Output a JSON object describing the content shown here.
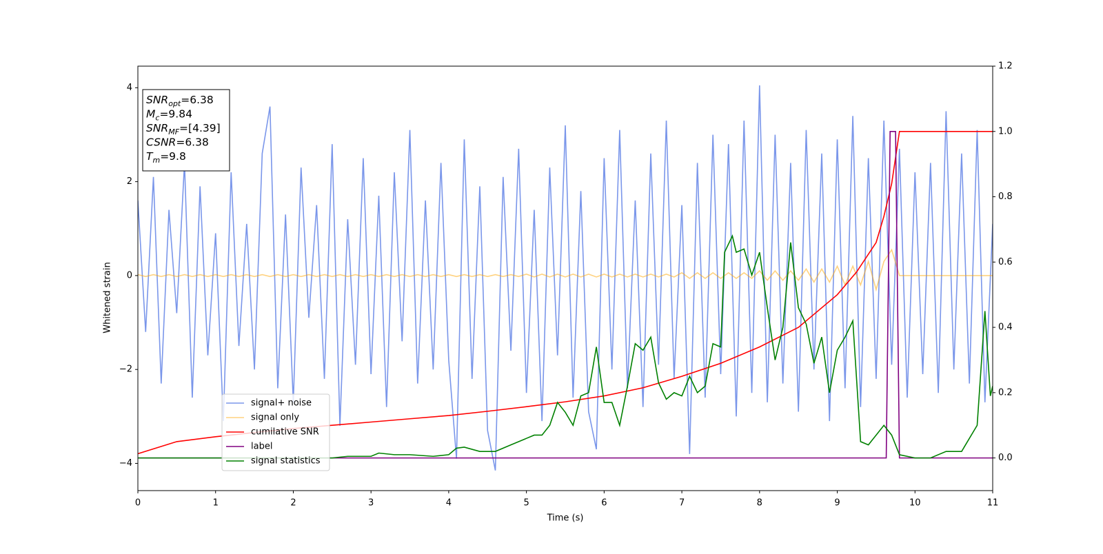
{
  "chart_data": {
    "type": "line",
    "xlabel": "Time (s)",
    "ylabel": "Whitened strain",
    "xlim": [
      0,
      11
    ],
    "xticks": [
      0,
      1,
      2,
      3,
      4,
      5,
      6,
      7,
      8,
      9,
      10,
      11
    ],
    "ylim": [
      -4.58,
      4.46
    ],
    "yticks": [
      {
        "value": -4,
        "label": "−4"
      },
      {
        "value": -2,
        "label": "−2"
      },
      0,
      2,
      4
    ],
    "y2lim": [
      -0.1,
      1.2
    ],
    "y2ticks": [
      {
        "value": 0,
        "label": "0.0"
      },
      0.2,
      0.4,
      0.6,
      0.8,
      {
        "value": 1,
        "label": "1.0"
      },
      1.2
    ],
    "annotation": [
      {
        "var": "SNR",
        "sub": "opt",
        "rest": "=6.38"
      },
      {
        "var": "M",
        "sub": "c",
        "rest": "=9.84"
      },
      {
        "var": "SNR",
        "sub": "MF",
        "rest": "=[4.39]"
      },
      {
        "var": "CSNR",
        "rest": "=6.38"
      },
      {
        "var": "T",
        "sub": "m",
        "rest": "=9.8"
      }
    ],
    "series": [
      {
        "name": "signal+ noise",
        "color": "#4169e1",
        "opacity": 0.7,
        "x": [
          0,
          0.1,
          0.2,
          0.3,
          0.4,
          0.5,
          0.6,
          0.7,
          0.8,
          0.9,
          1,
          1.1,
          1.2,
          1.3,
          1.4,
          1.5,
          1.6,
          1.7,
          1.8,
          1.9,
          2,
          2.1,
          2.2,
          2.3,
          2.4,
          2.5,
          2.6,
          2.7,
          2.8,
          2.9,
          3,
          3.1,
          3.2,
          3.3,
          3.4,
          3.5,
          3.6,
          3.7,
          3.8,
          3.9,
          4,
          4.1,
          4.2,
          4.3,
          4.4,
          4.5,
          4.6,
          4.7,
          4.8,
          4.9,
          5,
          5.1,
          5.2,
          5.3,
          5.4,
          5.5,
          5.6,
          5.7,
          5.8,
          5.9,
          6,
          6.1,
          6.2,
          6.3,
          6.4,
          6.5,
          6.6,
          6.7,
          6.8,
          6.9,
          7,
          7.1,
          7.2,
          7.3,
          7.4,
          7.5,
          7.6,
          7.7,
          7.8,
          7.9,
          8,
          8.1,
          8.2,
          8.3,
          8.4,
          8.5,
          8.6,
          8.7,
          8.8,
          8.9,
          9,
          9.1,
          9.2,
          9.3,
          9.4,
          9.5,
          9.6,
          9.7,
          9.8,
          9.9,
          10,
          10.1,
          10.2,
          10.3,
          10.4,
          10.5,
          10.6,
          10.7,
          10.8,
          10.9,
          11
        ],
        "values": [
          1.6,
          -1.2,
          2.1,
          -2.3,
          1.4,
          -0.8,
          2.4,
          -2.6,
          1.9,
          -1.7,
          0.9,
          -3.1,
          2.2,
          -1.5,
          1.1,
          -2.0,
          2.6,
          3.6,
          -2.4,
          1.3,
          -2.7,
          2.3,
          -0.9,
          1.5,
          -2.2,
          2.8,
          -3.2,
          1.2,
          -1.9,
          2.5,
          -2.1,
          1.7,
          -2.8,
          2.2,
          -1.4,
          3.1,
          -2.3,
          1.6,
          -2.0,
          2.4,
          -1.8,
          -3.9,
          2.9,
          -2.2,
          1.9,
          -3.3,
          -4.15,
          2.1,
          -1.6,
          2.7,
          -2.5,
          1.4,
          -3.1,
          2.3,
          -1.7,
          3.2,
          -2.6,
          1.8,
          -2.9,
          -3.7,
          2.5,
          -2.0,
          3.1,
          -2.4,
          1.6,
          -2.8,
          2.6,
          -1.9,
          3.3,
          -2.2,
          1.5,
          -3.8,
          2.4,
          -2.6,
          3.0,
          -2.1,
          2.8,
          -3.0,
          3.3,
          -2.5,
          4.05,
          -2.7,
          3.0,
          -2.3,
          2.4,
          -2.9,
          3.1,
          -2.0,
          2.6,
          -3.1,
          2.9,
          -2.4,
          3.4,
          -2.8,
          2.5,
          -2.2,
          3.3,
          -1.9,
          2.7,
          -2.6,
          2.2,
          -2.1,
          2.4,
          -2.5,
          3.5,
          -2.0,
          2.6,
          -2.3,
          3.1,
          -2.7,
          1.1
        ]
      },
      {
        "name": "signal only",
        "color": "#ffa500",
        "opacity": 0.5,
        "x": [
          0,
          0.1,
          0.2,
          0.3,
          0.4,
          0.5,
          0.6,
          0.7,
          0.8,
          0.9,
          1,
          1.1,
          1.2,
          1.3,
          1.4,
          1.5,
          1.6,
          1.7,
          1.8,
          1.9,
          2,
          2.1,
          2.2,
          2.3,
          2.4,
          2.5,
          2.6,
          2.7,
          2.8,
          2.9,
          3,
          3.1,
          3.2,
          3.3,
          3.4,
          3.5,
          3.6,
          3.7,
          3.8,
          3.9,
          4,
          4.1,
          4.2,
          4.3,
          4.4,
          4.5,
          4.6,
          4.7,
          4.8,
          4.9,
          5,
          5.1,
          5.2,
          5.3,
          5.4,
          5.5,
          5.6,
          5.7,
          5.8,
          5.9,
          6,
          6.1,
          6.2,
          6.3,
          6.4,
          6.5,
          6.6,
          6.7,
          6.8,
          6.9,
          7,
          7.1,
          7.2,
          7.3,
          7.4,
          7.5,
          7.6,
          7.7,
          7.8,
          7.9,
          8,
          8.1,
          8.2,
          8.3,
          8.4,
          8.5,
          8.6,
          8.7,
          8.8,
          8.9,
          9,
          9.1,
          9.2,
          9.3,
          9.4,
          9.5,
          9.6,
          9.7,
          9.8,
          9.9,
          10,
          10.1,
          10.2,
          10.3,
          10.4,
          10.5,
          10.6,
          10.7,
          10.8,
          10.9,
          11
        ],
        "values": [
          0.02,
          -0.02,
          0.02,
          -0.02,
          0.02,
          -0.02,
          0.02,
          -0.02,
          0.02,
          -0.02,
          0.02,
          -0.02,
          0.02,
          -0.02,
          0.02,
          -0.02,
          0.02,
          -0.02,
          0.02,
          -0.02,
          0.02,
          -0.02,
          0.02,
          -0.02,
          0.02,
          -0.02,
          0.02,
          -0.02,
          0.02,
          -0.02,
          0.02,
          -0.02,
          0.02,
          -0.02,
          0.02,
          -0.02,
          0.02,
          -0.02,
          0.02,
          -0.02,
          0.02,
          -0.02,
          0.02,
          -0.02,
          0.02,
          -0.02,
          0.02,
          -0.02,
          0.02,
          -0.02,
          0.03,
          -0.03,
          0.03,
          -0.03,
          0.03,
          -0.03,
          0.03,
          -0.03,
          0.03,
          -0.03,
          0.03,
          -0.03,
          0.03,
          -0.03,
          0.03,
          -0.03,
          0.03,
          -0.03,
          0.03,
          -0.03,
          0.06,
          -0.06,
          0.06,
          -0.06,
          0.06,
          -0.06,
          0.06,
          -0.06,
          0.06,
          -0.06,
          0.1,
          -0.1,
          0.1,
          -0.1,
          0.1,
          -0.1,
          0.14,
          -0.14,
          0.14,
          -0.14,
          0.2,
          -0.2,
          0.2,
          -0.2,
          0.3,
          -0.3,
          0.3,
          0.55,
          0,
          0,
          0,
          0,
          0,
          0,
          0,
          0,
          0,
          0,
          0,
          0,
          0
        ]
      },
      {
        "name": "cumilative SNR",
        "color": "#ff0000",
        "axis": "y2",
        "x": [
          0,
          0.5,
          1,
          1.5,
          2,
          2.5,
          3,
          3.5,
          4,
          4.5,
          5,
          5.5,
          6,
          6.5,
          7,
          7.5,
          8,
          8.5,
          9,
          9.25,
          9.5,
          9.6,
          9.7,
          9.75,
          9.8,
          11
        ],
        "values": [
          0.013,
          0.05,
          0.065,
          0.078,
          0.09,
          0.1,
          0.11,
          0.12,
          0.13,
          0.143,
          0.157,
          0.172,
          0.19,
          0.215,
          0.25,
          0.29,
          0.34,
          0.4,
          0.5,
          0.57,
          0.66,
          0.74,
          0.84,
          0.92,
          1.0,
          1.0
        ]
      },
      {
        "name": "label",
        "color": "#800080",
        "axis": "y2",
        "x": [
          0,
          9.63,
          9.68,
          9.75,
          9.8,
          11
        ],
        "values": [
          0,
          0,
          1,
          1,
          0,
          0
        ]
      },
      {
        "name": "signal statistics",
        "color": "#008000",
        "axis": "y2",
        "x": [
          0,
          2.5,
          2.7,
          3,
          3.1,
          3.3,
          3.5,
          3.8,
          4,
          4.1,
          4.2,
          4.4,
          4.6,
          4.8,
          5,
          5.1,
          5.2,
          5.3,
          5.4,
          5.5,
          5.6,
          5.7,
          5.8,
          5.9,
          6,
          6.1,
          6.2,
          6.3,
          6.4,
          6.5,
          6.6,
          6.7,
          6.8,
          6.9,
          7,
          7.1,
          7.2,
          7.3,
          7.4,
          7.5,
          7.55,
          7.65,
          7.7,
          7.8,
          7.9,
          8,
          8.1,
          8.2,
          8.3,
          8.4,
          8.5,
          8.6,
          8.7,
          8.8,
          8.9,
          9,
          9.1,
          9.2,
          9.3,
          9.4,
          9.5,
          9.6,
          9.7,
          9.8,
          10,
          10.2,
          10.4,
          10.6,
          10.8,
          10.9,
          10.97,
          11
        ],
        "values": [
          0,
          0,
          0.005,
          0.005,
          0.015,
          0.01,
          0.01,
          0.005,
          0.01,
          0.03,
          0.033,
          0.02,
          0.02,
          0.04,
          0.06,
          0.07,
          0.07,
          0.1,
          0.17,
          0.14,
          0.1,
          0.19,
          0.2,
          0.34,
          0.17,
          0.17,
          0.1,
          0.22,
          0.35,
          0.33,
          0.37,
          0.23,
          0.18,
          0.2,
          0.19,
          0.25,
          0.2,
          0.22,
          0.35,
          0.34,
          0.63,
          0.68,
          0.63,
          0.64,
          0.56,
          0.63,
          0.46,
          0.3,
          0.4,
          0.66,
          0.46,
          0.41,
          0.29,
          0.37,
          0.2,
          0.33,
          0.37,
          0.42,
          0.05,
          0.04,
          0.07,
          0.1,
          0.07,
          0.01,
          0,
          0,
          0.02,
          0.02,
          0.1,
          0.45,
          0.19,
          0.22
        ]
      }
    ]
  }
}
